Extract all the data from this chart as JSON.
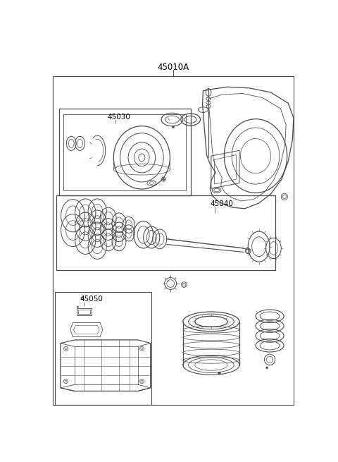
{
  "title": "45010A",
  "label_45030": "45030",
  "label_45040": "45040",
  "label_45050": "45050",
  "bg_color": "#ffffff",
  "line_color": "#4a4a4a",
  "fig_width": 4.8,
  "fig_height": 6.55,
  "dpi": 100,
  "title_fontsize": 8.5,
  "label_fontsize": 7.5
}
